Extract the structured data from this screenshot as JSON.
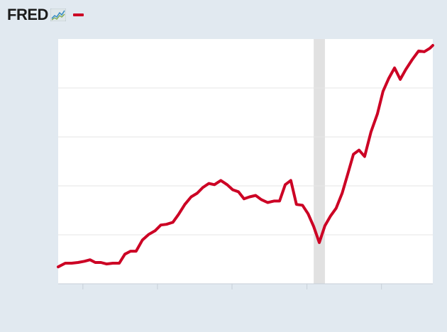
{
  "header": {
    "logo_text": "FRED",
    "logo_icon": "line-chart-icon"
  },
  "colors": {
    "background": "#e1e9f0",
    "plot_background": "#ffffff",
    "series": "#cc0024",
    "recession": "#e1e1e1",
    "grid": "#e6e6e6",
    "logo_text": "#1c1c1c"
  },
  "chart_data": {
    "type": "line",
    "title": "",
    "xlabel": "",
    "ylabel": "",
    "xlim": [
      0,
      100
    ],
    "ylim": [
      0,
      100
    ],
    "grid": {
      "horizontal": true,
      "vertical": false
    },
    "legend": "top-left",
    "xticks": [
      6.6,
      26.5,
      46.4,
      66.4,
      86.3
    ],
    "yticks": [
      20,
      40,
      60,
      80
    ],
    "recession_bands": [
      [
        68.2,
        71.2
      ]
    ],
    "series": [
      {
        "name": "",
        "color": "#cc0024",
        "x": [
          0.0,
          1.9,
          3.6,
          5.3,
          7.0,
          8.5,
          9.9,
          11.4,
          12.9,
          14.6,
          16.3,
          17.8,
          19.3,
          20.8,
          22.5,
          24.2,
          25.9,
          27.4,
          28.9,
          30.6,
          32.1,
          33.8,
          35.5,
          37.1,
          38.6,
          40.2,
          41.7,
          43.4,
          45.1,
          46.6,
          48.1,
          49.6,
          51.1,
          52.7,
          54.2,
          55.9,
          57.6,
          59.1,
          60.6,
          62.1,
          63.6,
          65.2,
          66.7,
          68.2,
          69.7,
          71.2,
          72.7,
          74.2,
          75.8,
          77.3,
          78.8,
          80.3,
          81.8,
          83.5,
          85.2,
          86.7,
          88.2,
          89.8,
          91.3,
          92.8,
          94.5,
          96.2,
          97.7,
          99.2,
          100.0
        ],
        "y": [
          6.9,
          8.4,
          8.4,
          8.7,
          9.2,
          9.8,
          8.7,
          8.7,
          8.1,
          8.4,
          8.4,
          12.1,
          13.3,
          13.3,
          17.9,
          20.2,
          21.7,
          24.0,
          24.3,
          25.1,
          28.3,
          32.4,
          35.5,
          37.0,
          39.3,
          41.0,
          40.5,
          42.2,
          40.5,
          38.4,
          37.6,
          34.7,
          35.5,
          36.1,
          34.4,
          33.2,
          33.8,
          33.8,
          40.5,
          42.2,
          32.4,
          32.1,
          28.6,
          23.4,
          16.8,
          23.7,
          27.7,
          30.9,
          37.0,
          44.8,
          52.9,
          54.6,
          52.0,
          62.1,
          69.4,
          78.6,
          83.8,
          88.2,
          83.5,
          87.6,
          91.6,
          95.1,
          94.8,
          96.2,
          97.4
        ]
      }
    ]
  }
}
